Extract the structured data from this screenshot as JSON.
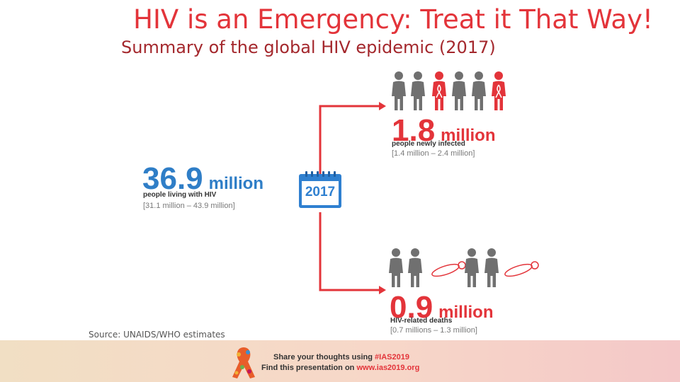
{
  "title": "HIV is an Emergency: Treat it That Way!",
  "subtitle": "Summary of the global HIV epidemic (2017)",
  "colors": {
    "red": "#e3343a",
    "blue": "#2f7ec7",
    "gray": "#707070",
    "calendar_blue": "#2f80d0"
  },
  "living": {
    "number": "36.9",
    "unit": "million",
    "caption": "people living with HIV",
    "range": "[31.1 million – 43.9 million]",
    "progress_shown": 1.0
  },
  "calendar": {
    "year": "2017"
  },
  "new_infections": {
    "number": "1.8",
    "unit": "million",
    "caption": "people newly infected",
    "range": "[1.4 million – 2.4 million]"
  },
  "deaths": {
    "number": "0.9",
    "unit": "million",
    "caption": "HIV-related deaths",
    "range": "[0.7 millions – 1.3 million]"
  },
  "source": "Source: UNAIDS/WHO estimates",
  "footer": {
    "line1_prefix": "Share your thoughts using ",
    "hashtag": "#IAS2019",
    "line2_prefix": "Find this presentation on ",
    "url": "www.ias2019.org"
  }
}
